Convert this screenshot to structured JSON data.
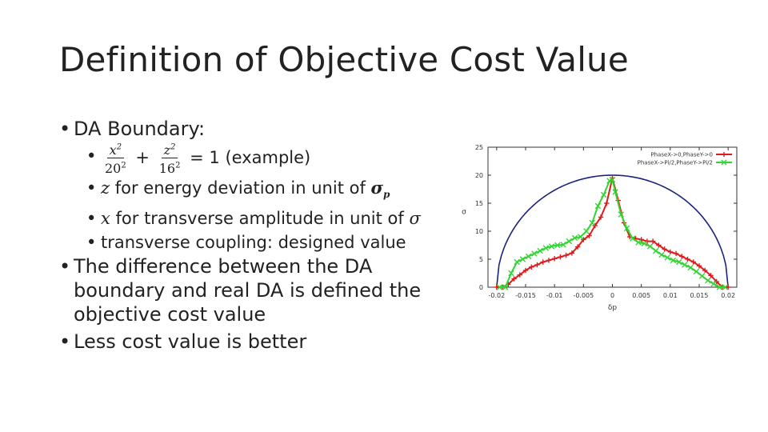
{
  "slide": {
    "title": "Definition of Objective Cost Value",
    "bullets": {
      "da_boundary": "DA Boundary:",
      "eq_rhs": "= 1 (example)",
      "z_var": "z",
      "z_text": " for energy deviation in unit of ",
      "sigma_p": "σp",
      "x_var": "x",
      "x_text": " for transverse amplitude in unit of ",
      "sigma": "σ",
      "coupling": "transverse coupling: designed value",
      "difference": "The difference between the DA boundary and real DA is defined the objective cost value",
      "less_cost": "Less cost value is better"
    },
    "equation": {
      "x_num": "x2",
      "x_den": "202",
      "z_num": "z2",
      "z_den": "162"
    }
  },
  "chart_data": {
    "type": "line",
    "xlabel": "δp",
    "ylabel": "σ",
    "xlim": [
      -0.0215,
      0.0215
    ],
    "ylim": [
      0,
      25
    ],
    "x_ticks": [
      -0.02,
      -0.015,
      -0.01,
      -0.005,
      0,
      0.005,
      0.01,
      0.015,
      0.02
    ],
    "x_tick_labels": [
      "-0.02",
      "-0.015",
      "-0.01",
      "-0.005",
      "0",
      "0.005",
      "0.01",
      "0.015",
      "0.02"
    ],
    "y_ticks": [
      0,
      5,
      10,
      15,
      20,
      25
    ],
    "y_tick_labels": [
      "0",
      "5",
      "10",
      "15",
      "20",
      "25"
    ],
    "legend_position": "top-right",
    "boundary": {
      "a": 0.02,
      "b": 20,
      "color": "#1a237e"
    },
    "series": [
      {
        "name": "PhaseX->0,PhaseY->0",
        "color": "#e01b1b",
        "marker": "+",
        "x": [
          -0.02,
          -0.019,
          -0.018,
          -0.017,
          -0.016,
          -0.015,
          -0.014,
          -0.013,
          -0.012,
          -0.011,
          -0.01,
          -0.009,
          -0.008,
          -0.007,
          -0.006,
          -0.005,
          -0.004,
          -0.003,
          -0.002,
          -0.001,
          0,
          0.001,
          0.002,
          0.003,
          0.004,
          0.005,
          0.006,
          0.007,
          0.008,
          0.009,
          0.01,
          0.011,
          0.012,
          0.013,
          0.014,
          0.015,
          0.016,
          0.017,
          0.018,
          0.019,
          0.02
        ],
        "y": [
          0,
          0,
          0.5,
          1.5,
          2.2,
          3,
          3.6,
          4,
          4.5,
          4.8,
          5.1,
          5.4,
          5.7,
          6.1,
          7.2,
          8.5,
          9.2,
          11,
          12.5,
          15,
          19.5,
          15.5,
          11.5,
          9,
          8.7,
          8.5,
          8.2,
          8.2,
          7.5,
          6.8,
          6.3,
          6,
          5.5,
          5,
          4.5,
          3.8,
          3,
          2.1,
          1,
          0,
          0
        ]
      },
      {
        "name": "PhaseX->Pi/2,PhaseY->Pi/2",
        "color": "#33d433",
        "marker": "x",
        "x": [
          -0.0195,
          -0.0185,
          -0.0175,
          -0.0165,
          -0.0155,
          -0.0145,
          -0.0135,
          -0.0125,
          -0.0115,
          -0.0105,
          -0.0095,
          -0.0085,
          -0.0075,
          -0.0065,
          -0.0055,
          -0.0045,
          -0.0035,
          -0.0025,
          -0.0015,
          -0.0005,
          0,
          0.0005,
          0.0015,
          0.0025,
          0.0035,
          0.0045,
          0.0055,
          0.0065,
          0.0075,
          0.0085,
          0.0095,
          0.0105,
          0.0115,
          0.0125,
          0.0135,
          0.0145,
          0.0155,
          0.0165,
          0.0175,
          0.0185,
          0.0195
        ],
        "y": [
          0,
          0,
          2.5,
          4.5,
          5,
          5.5,
          6,
          6.5,
          7,
          7.3,
          7.5,
          7.6,
          8.2,
          8.8,
          9,
          10,
          11.5,
          14.5,
          16.5,
          19,
          19.2,
          17,
          13,
          10.5,
          8.7,
          8,
          7.8,
          7.3,
          6.5,
          5.8,
          5.3,
          4.8,
          4.5,
          4,
          3.5,
          2.8,
          2,
          1.2,
          0.6,
          0,
          0
        ]
      }
    ]
  }
}
